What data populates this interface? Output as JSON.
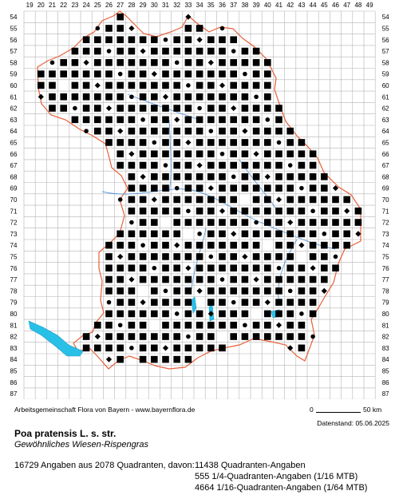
{
  "map": {
    "x_labels": [
      "19",
      "20",
      "21",
      "22",
      "23",
      "24",
      "25",
      "26",
      "27",
      "28",
      "29",
      "30",
      "31",
      "32",
      "33",
      "34",
      "35",
      "36",
      "37",
      "38",
      "39",
      "40",
      "41",
      "42",
      "43",
      "44",
      "45",
      "46",
      "47",
      "48",
      "49"
    ],
    "y_labels": [
      "54",
      "55",
      "56",
      "57",
      "58",
      "59",
      "60",
      "61",
      "62",
      "63",
      "64",
      "65",
      "66",
      "67",
      "68",
      "69",
      "70",
      "71",
      "72",
      "73",
      "74",
      "75",
      "76",
      "77",
      "78",
      "79",
      "80",
      "81",
      "82",
      "83",
      "84",
      "85",
      "86",
      "87"
    ],
    "colors": {
      "grid": "#b4b4b4",
      "border": "#e8603a",
      "water": "#29c0e8",
      "river": "#3a86d6",
      "square": "#000000"
    },
    "legend_symbols": [
      "filled-square: Quadranten-Angaben",
      "filled-circle: 1/4-Quadranten-Angaben",
      "filled-diamond: 1/16-Quadranten-Angaben"
    ]
  },
  "footer": {
    "credit": "Arbeitsgemeinschaft Flora von Bayern - www.bayernflora.de",
    "scale_zero": "0",
    "scale_km": "50 km",
    "date": "Datenstand: 05.06.2025"
  },
  "species": {
    "name": "Poa pratensis L. s. str.",
    "common_name": "Gewöhnliches Wiesen-Rispengras"
  },
  "stats": {
    "total": "16729 Angaben aus 2078 Quadranten, davon:",
    "quadrant": "11438 Quadranten-Angaben",
    "v16": "555 1/4-Quadranten-Angaben (1/16 MTB)",
    "v64": "4664 1/16-Quadranten-Angaben (1/64 MTB)"
  }
}
